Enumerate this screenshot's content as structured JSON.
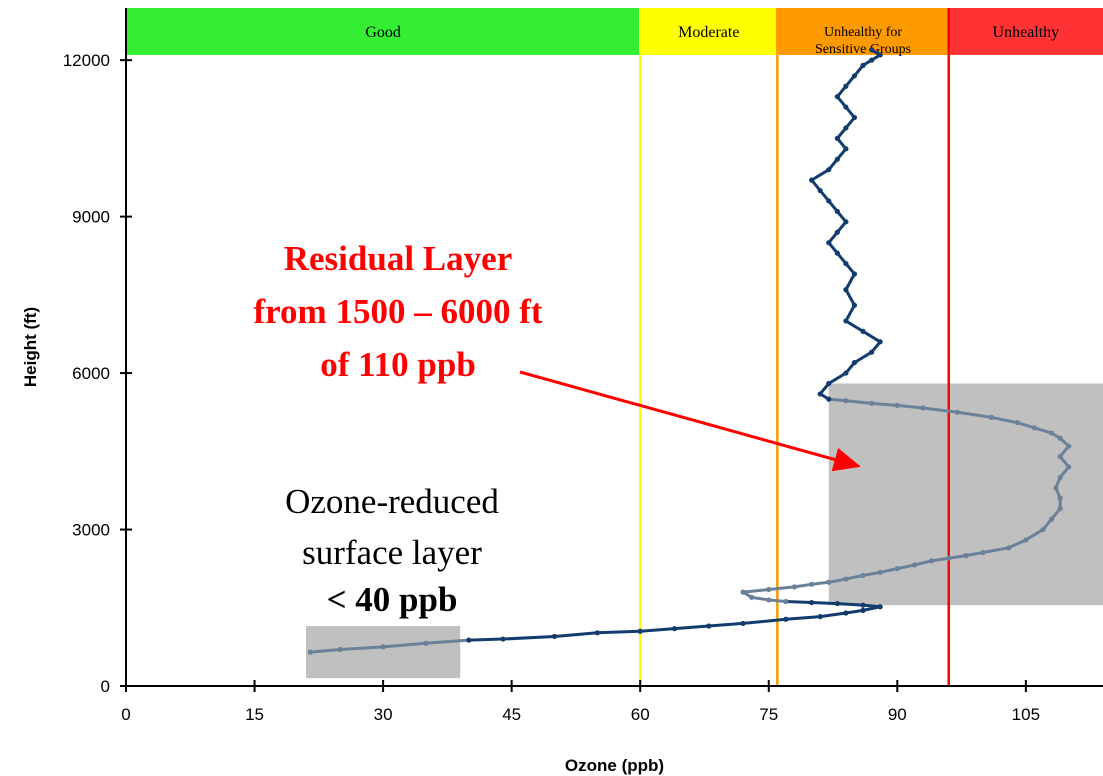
{
  "chart_data": {
    "type": "line",
    "title": "",
    "xlabel": "Ozone (ppb)",
    "ylabel": "Height (ft)",
    "xlim": [
      0,
      114
    ],
    "ylim": [
      0,
      13000
    ],
    "x_ticks": [
      0,
      15,
      30,
      45,
      60,
      75,
      90,
      105
    ],
    "y_ticks": [
      0,
      3000,
      6000,
      9000,
      12000
    ],
    "grid": false,
    "bands": [
      {
        "label": "Good",
        "from": 0,
        "to": 60,
        "color": "#33ee33",
        "line_color": "#ffff00"
      },
      {
        "label": "Moderate",
        "from": 60,
        "to": 76,
        "color": "#ffff00",
        "line_color": "#ff9900"
      },
      {
        "label_lines": [
          "Unhealthy for",
          "Sensitive Groups"
        ],
        "from": 76,
        "to": 96,
        "color": "#ff9900",
        "line_color": "#ff0000"
      },
      {
        "label": "Unhealthy",
        "from": 96,
        "to": 114,
        "color": "#ff3333",
        "line_color": null
      }
    ],
    "series": [
      {
        "color": "#123c6e",
        "highlight_color": "#6a8199",
        "x": [
          21.5,
          25,
          30,
          35,
          40,
          44,
          50,
          55,
          60,
          64,
          68,
          72,
          77,
          81,
          84,
          86,
          88,
          86,
          83,
          80,
          77,
          75,
          73,
          72,
          75,
          78,
          80,
          82,
          84,
          86,
          88,
          90,
          92,
          94,
          96,
          98,
          100,
          103,
          105,
          107,
          108,
          109,
          109,
          108.5,
          109,
          110,
          109,
          110,
          109,
          108,
          106,
          104,
          101,
          97,
          93,
          90,
          87,
          84,
          82,
          81,
          82,
          84,
          85,
          87,
          88,
          86,
          84,
          85,
          84,
          85,
          84,
          83,
          82,
          83,
          84,
          83,
          82,
          81,
          80,
          82,
          83,
          84,
          83,
          84,
          85,
          84,
          83,
          84,
          85,
          86,
          87,
          88,
          87
        ],
        "y": [
          650,
          700,
          750,
          820,
          880,
          900,
          950,
          1020,
          1050,
          1100,
          1150,
          1200,
          1280,
          1330,
          1400,
          1450,
          1520,
          1550,
          1580,
          1600,
          1620,
          1650,
          1700,
          1800,
          1850,
          1900,
          1950,
          1990,
          2050,
          2120,
          2180,
          2250,
          2320,
          2400,
          2450,
          2500,
          2560,
          2650,
          2800,
          3000,
          3200,
          3400,
          3600,
          3800,
          4000,
          4200,
          4400,
          4600,
          4750,
          4850,
          4950,
          5050,
          5150,
          5250,
          5330,
          5380,
          5420,
          5470,
          5500,
          5600,
          5800,
          6000,
          6200,
          6400,
          6600,
          6800,
          7000,
          7300,
          7600,
          7900,
          8100,
          8300,
          8500,
          8700,
          8900,
          9100,
          9300,
          9500,
          9700,
          9900,
          10100,
          10300,
          10500,
          10700,
          10900,
          11100,
          11300,
          11500,
          11700,
          11900,
          12000,
          12100,
          12200
        ],
        "highlight_ranges": [
          [
            0,
            4
          ],
          [
            20,
            58
          ]
        ]
      }
    ],
    "shaded_regions": [
      {
        "x_from": 21,
        "x_to": 39,
        "y_from": 150,
        "y_to": 1150
      },
      {
        "x_from": 82,
        "x_to": 114,
        "y_from": 1550,
        "y_to": 5800
      }
    ],
    "annotations": {
      "residual_lines": [
        "Residual Layer",
        "from 1500 – 6000 ft",
        "of 110 ppb"
      ],
      "surface_lines": [
        "Ozone-reduced",
        "surface layer"
      ],
      "surface_bold": "< 40 ppb"
    }
  }
}
